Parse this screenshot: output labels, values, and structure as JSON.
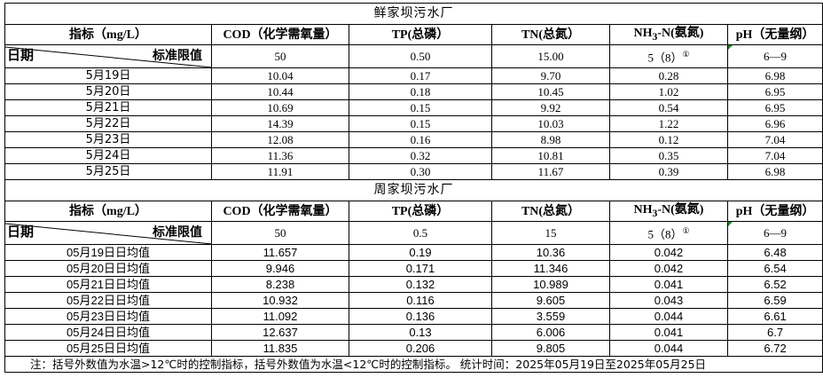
{
  "headers": {
    "indicator": "指标（mg/L）",
    "cod": "COD（化学需氧量）",
    "tp": "TP(总磷）",
    "tn": "TN(总氮）",
    "nh3_pre": "NH",
    "nh3_sub": "3",
    "nh3_post": "-N(氨氮)",
    "ph": "pH（无量纲）",
    "date": "日期",
    "standard": "标准限值"
  },
  "plant1": {
    "title": "鲜家坝污水厂",
    "std": [
      "50",
      "0.50",
      "15.00",
      "5（8）",
      "6—9"
    ],
    "footnote_mark": "①",
    "rows": [
      [
        "5月19日",
        "10.04",
        "0.17",
        "9.70",
        "0.28",
        "6.98"
      ],
      [
        "5月20日",
        "10.44",
        "0.18",
        "10.45",
        "1.02",
        "6.95"
      ],
      [
        "5月21日",
        "10.69",
        "0.15",
        "9.92",
        "0.54",
        "6.95"
      ],
      [
        "5月22日",
        "14.39",
        "0.15",
        "10.03",
        "1.22",
        "6.96"
      ],
      [
        "5月23日",
        "12.08",
        "0.16",
        "8.98",
        "0.12",
        "7.04"
      ],
      [
        "5月24日",
        "11.36",
        "0.32",
        "10.81",
        "0.35",
        "7.04"
      ],
      [
        "5月25日",
        "11.91",
        "0.30",
        "11.67",
        "0.39",
        "6.98"
      ]
    ]
  },
  "plant2": {
    "title": "周家坝污水厂",
    "std": [
      "50",
      "0.5",
      "15",
      "5（8）",
      "6—9"
    ],
    "footnote_mark": "①",
    "rows": [
      [
        "05月19日日均值",
        "11.657",
        "0.19",
        "10.36",
        "0.042",
        "6.48"
      ],
      [
        "05月20日日均值",
        "9.946",
        "0.171",
        "11.346",
        "0.042",
        "6.54"
      ],
      [
        "05月21日日均值",
        "8.238",
        "0.132",
        "10.989",
        "0.041",
        "6.52"
      ],
      [
        "05月22日日均值",
        "10.932",
        "0.116",
        "9.605",
        "0.043",
        "6.59"
      ],
      [
        "05月23日日均值",
        "11.092",
        "0.136",
        "3.559",
        "0.044",
        "6.61"
      ],
      [
        "05月24日日均值",
        "12.637",
        "0.13",
        "6.006",
        "0.041",
        "6.7"
      ],
      [
        "05月25日日均值",
        "11.835",
        "0.206",
        "9.805",
        "0.044",
        "6.72"
      ]
    ]
  },
  "note": "注：括号外数值为水温>12℃时的控制指标，括号外数值为水温<12℃时的控制指标。  统计时间：2025年05月19日至2025年05月25日"
}
